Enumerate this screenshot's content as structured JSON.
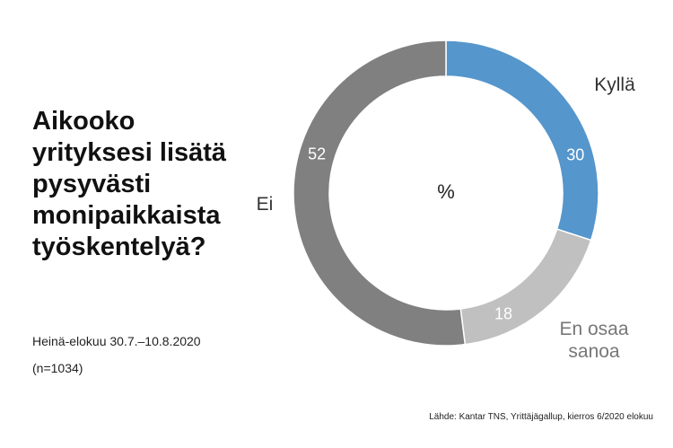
{
  "chart_data": {
    "type": "donut",
    "title": "Aikooko yrityksesi lisätä pysyvästi monipaikkaista työskentelyä?",
    "subtitle": "Heinä-elokuu 30.7.–10.8.2020",
    "note": "(n=1034)",
    "center_label": "%",
    "source": "Lähde: Kantar TNS, Yrittäjägallup, kierros 6/2020 elokuu",
    "categories": [
      "Kyllä",
      "En osaa sanoa",
      "Ei"
    ],
    "values": [
      30,
      18,
      52
    ],
    "colors": [
      "#5596cc",
      "#c0c0c0",
      "#808080"
    ]
  }
}
